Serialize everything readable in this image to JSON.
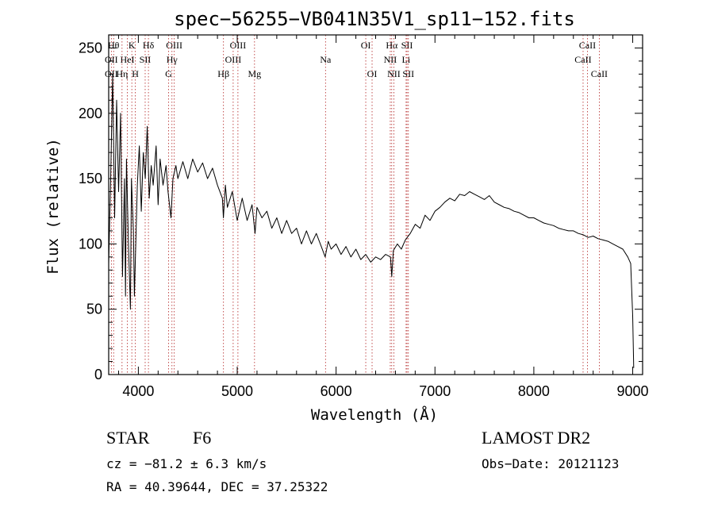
{
  "chart_data": {
    "type": "line",
    "title": "spec−56255−VB041N35V1_sp11−152.fits",
    "xlabel": "Wavelength (Å)",
    "ylabel": "Flux (relative)",
    "xlim": [
      3700,
      9100
    ],
    "ylim": [
      0,
      260
    ],
    "x_ticks": [
      4000,
      5000,
      6000,
      7000,
      8000,
      9000
    ],
    "y_ticks": [
      0,
      50,
      100,
      150,
      200,
      250
    ],
    "grid": false,
    "series": [
      {
        "color": "#000000",
        "points": [
          [
            3700,
            85
          ],
          [
            3720,
            150
          ],
          [
            3740,
            230
          ],
          [
            3760,
            120
          ],
          [
            3780,
            210
          ],
          [
            3800,
            140
          ],
          [
            3820,
            200
          ],
          [
            3840,
            75
          ],
          [
            3860,
            150
          ],
          [
            3870,
            60
          ],
          [
            3880,
            165
          ],
          [
            3900,
            100
          ],
          [
            3920,
            50
          ],
          [
            3930,
            150
          ],
          [
            3950,
            110
          ],
          [
            3960,
            60
          ],
          [
            3970,
            90
          ],
          [
            3990,
            145
          ],
          [
            4010,
            175
          ],
          [
            4030,
            125
          ],
          [
            4050,
            170
          ],
          [
            4070,
            150
          ],
          [
            4090,
            190
          ],
          [
            4110,
            135
          ],
          [
            4130,
            160
          ],
          [
            4150,
            145
          ],
          [
            4180,
            175
          ],
          [
            4200,
            130
          ],
          [
            4220,
            165
          ],
          [
            4250,
            145
          ],
          [
            4280,
            160
          ],
          [
            4300,
            140
          ],
          [
            4330,
            120
          ],
          [
            4350,
            150
          ],
          [
            4380,
            160
          ],
          [
            4400,
            150
          ],
          [
            4450,
            163
          ],
          [
            4500,
            150
          ],
          [
            4550,
            165
          ],
          [
            4600,
            155
          ],
          [
            4650,
            162
          ],
          [
            4700,
            150
          ],
          [
            4750,
            158
          ],
          [
            4800,
            145
          ],
          [
            4850,
            135
          ],
          [
            4860,
            120
          ],
          [
            4880,
            145
          ],
          [
            4900,
            128
          ],
          [
            4950,
            140
          ],
          [
            5000,
            118
          ],
          [
            5050,
            135
          ],
          [
            5100,
            118
          ],
          [
            5150,
            130
          ],
          [
            5180,
            108
          ],
          [
            5200,
            128
          ],
          [
            5250,
            120
          ],
          [
            5300,
            125
          ],
          [
            5350,
            112
          ],
          [
            5400,
            120
          ],
          [
            5450,
            108
          ],
          [
            5500,
            118
          ],
          [
            5550,
            108
          ],
          [
            5600,
            112
          ],
          [
            5650,
            100
          ],
          [
            5700,
            110
          ],
          [
            5750,
            100
          ],
          [
            5800,
            108
          ],
          [
            5850,
            98
          ],
          [
            5890,
            90
          ],
          [
            5920,
            102
          ],
          [
            5950,
            96
          ],
          [
            6000,
            100
          ],
          [
            6050,
            92
          ],
          [
            6100,
            98
          ],
          [
            6150,
            90
          ],
          [
            6200,
            96
          ],
          [
            6250,
            88
          ],
          [
            6300,
            92
          ],
          [
            6350,
            86
          ],
          [
            6400,
            90
          ],
          [
            6450,
            88
          ],
          [
            6500,
            92
          ],
          [
            6550,
            90
          ],
          [
            6563,
            75
          ],
          [
            6580,
            95
          ],
          [
            6620,
            100
          ],
          [
            6660,
            96
          ],
          [
            6700,
            103
          ],
          [
            6750,
            108
          ],
          [
            6800,
            115
          ],
          [
            6850,
            112
          ],
          [
            6900,
            122
          ],
          [
            6950,
            118
          ],
          [
            7000,
            125
          ],
          [
            7050,
            128
          ],
          [
            7100,
            132
          ],
          [
            7150,
            135
          ],
          [
            7200,
            133
          ],
          [
            7250,
            138
          ],
          [
            7300,
            137
          ],
          [
            7350,
            140
          ],
          [
            7400,
            138
          ],
          [
            7450,
            136
          ],
          [
            7500,
            134
          ],
          [
            7550,
            137
          ],
          [
            7600,
            132
          ],
          [
            7650,
            130
          ],
          [
            7700,
            128
          ],
          [
            7750,
            127
          ],
          [
            7800,
            125
          ],
          [
            7850,
            124
          ],
          [
            7900,
            122
          ],
          [
            7950,
            120
          ],
          [
            8000,
            120
          ],
          [
            8050,
            118
          ],
          [
            8100,
            116
          ],
          [
            8150,
            115
          ],
          [
            8200,
            114
          ],
          [
            8250,
            112
          ],
          [
            8300,
            111
          ],
          [
            8350,
            110
          ],
          [
            8400,
            110
          ],
          [
            8450,
            108
          ],
          [
            8500,
            107
          ],
          [
            8550,
            105
          ],
          [
            8600,
            106
          ],
          [
            8650,
            104
          ],
          [
            8700,
            103
          ],
          [
            8750,
            102
          ],
          [
            8800,
            100
          ],
          [
            8850,
            98
          ],
          [
            8900,
            96
          ],
          [
            8950,
            90
          ],
          [
            8980,
            85
          ],
          [
            9000,
            45
          ],
          [
            9010,
            5
          ]
        ]
      }
    ],
    "line_markers": [
      {
        "label": "Hθ",
        "x": 3750,
        "row": 1
      },
      {
        "label": "OII",
        "x": 3727,
        "row": 2
      },
      {
        "label": "OII",
        "x": 3727,
        "row": 3
      },
      {
        "label": "K",
        "x": 3934,
        "row": 1
      },
      {
        "label": "HeI",
        "x": 3889,
        "row": 2
      },
      {
        "label": "Hη",
        "x": 3835,
        "row": 3
      },
      {
        "label": "H",
        "x": 3969,
        "row": 3
      },
      {
        "label": "Hδ",
        "x": 4102,
        "row": 1
      },
      {
        "label": "SII",
        "x": 4069,
        "row": 2
      },
      {
        "label": "OIII",
        "x": 4363,
        "row": 1
      },
      {
        "label": "Hγ",
        "x": 4340,
        "row": 2
      },
      {
        "label": "G",
        "x": 4305,
        "row": 3
      },
      {
        "label": "Hβ",
        "x": 4861,
        "row": 3
      },
      {
        "label": "OIII",
        "x": 5007,
        "row": 1
      },
      {
        "label": "OIII",
        "x": 4959,
        "row": 2
      },
      {
        "label": "Mg",
        "x": 5175,
        "row": 3
      },
      {
        "label": "Na",
        "x": 5893,
        "row": 2
      },
      {
        "label": "OI",
        "x": 6300,
        "row": 1
      },
      {
        "label": "OI",
        "x": 6364,
        "row": 3
      },
      {
        "label": "Hα",
        "x": 6563,
        "row": 1
      },
      {
        "label": "NII",
        "x": 6548,
        "row": 2
      },
      {
        "label": "NII",
        "x": 6584,
        "row": 3
      },
      {
        "label": "SII",
        "x": 6717,
        "row": 1
      },
      {
        "label": "Li",
        "x": 6708,
        "row": 2
      },
      {
        "label": "SII",
        "x": 6731,
        "row": 3
      },
      {
        "label": "CaII",
        "x": 8542,
        "row": 1
      },
      {
        "label": "CaII",
        "x": 8498,
        "row": 2
      },
      {
        "label": "CaII",
        "x": 8662,
        "row": 3
      }
    ],
    "marker_color": "#b22222",
    "annotations": {
      "object_class": "STAR",
      "subclass": "F6",
      "survey": "LAMOST DR2",
      "redshift_text": "cz = −81.2 ± 6.3 km/s",
      "obs_date_text": "Obs−Date: 20121123",
      "coords_text": "RA =  40.39644, DEC =  37.25322"
    }
  }
}
